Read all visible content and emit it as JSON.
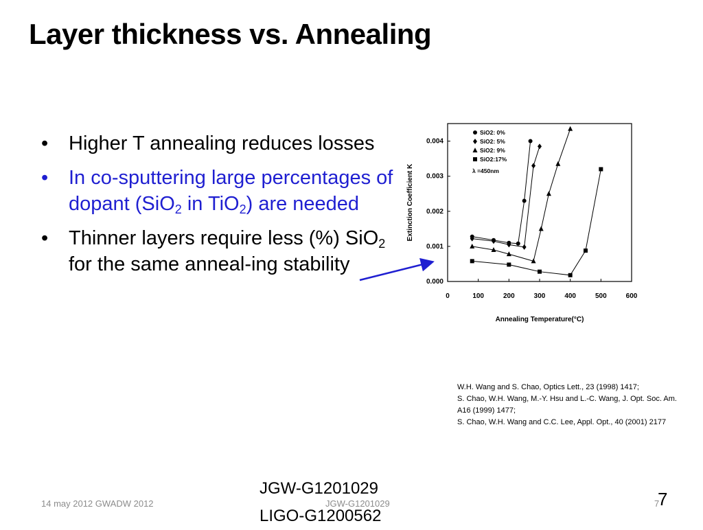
{
  "slide": {
    "title": "Layer thickness vs. Annealing",
    "bullets": [
      {
        "parts": [
          "Higher T annealing  reduces losses"
        ]
      },
      {
        "parts": [
          "In co-sputtering large percentages of dopant (SiO",
          "2",
          "  in TiO",
          "2",
          ") are needed"
        ]
      },
      {
        "parts": [
          "Thinner layers require less (%) SiO",
          "2",
          " for the same anneal-ing stability"
        ]
      }
    ],
    "bullet_glyph": "•",
    "accent_color": "#1f1fd1",
    "references": [
      "W.H. Wang and S. Chao, Optics Lett., 23 (1998) 1417;",
      "S. Chao, W.H. Wang, M.-Y. Hsu and L.-C. Wang, J. Opt. Soc. Am. A16 (1999) 1477;",
      "S. Chao, W.H. Wang and C.C. Lee, Appl. Opt., 40 (2001) 2177"
    ],
    "footer": {
      "date": "14 may 2012 GWADW 2012",
      "center": "JGW-G1201029",
      "page_small": "7",
      "page": "7",
      "doc_ids": [
        "JGW-G1201029",
        "LIGO-G1200562"
      ]
    }
  },
  "chart_data": {
    "type": "line",
    "xlabel": "Annealing Temperature(°C)",
    "ylabel": "Extinction Coefficient K",
    "xlim": [
      0,
      600
    ],
    "ylim": [
      0,
      0.0045
    ],
    "x_ticks": [
      "0",
      "100",
      "200",
      "300",
      "400",
      "500",
      "600"
    ],
    "y_ticks": [
      "0.000",
      "0.001",
      "0.002",
      "0.003",
      "0.004"
    ],
    "legend_note": "λ =450nm",
    "series": [
      {
        "name": "SiO2: 0%",
        "marker": "circle",
        "x": [
          80,
          150,
          200,
          230,
          250,
          270
        ],
        "y": [
          0.00128,
          0.00118,
          0.0011,
          0.00108,
          0.0023,
          0.004
        ]
      },
      {
        "name": "SiO2: 5%",
        "marker": "diamond",
        "x": [
          80,
          150,
          200,
          250,
          280,
          300
        ],
        "y": [
          0.00122,
          0.00115,
          0.00105,
          0.00098,
          0.0033,
          0.00385
        ]
      },
      {
        "name": "SiO2: 9%",
        "marker": "triangle",
        "x": [
          80,
          150,
          200,
          280,
          305,
          330,
          360,
          400
        ],
        "y": [
          0.001,
          0.0009,
          0.00078,
          0.00058,
          0.0015,
          0.0025,
          0.00335,
          0.00435
        ]
      },
      {
        "name": "SiO2:17%",
        "marker": "square",
        "x": [
          80,
          200,
          300,
          400,
          450,
          500
        ],
        "y": [
          0.00058,
          0.00048,
          0.00028,
          0.00018,
          0.00088,
          0.0032
        ]
      }
    ]
  }
}
